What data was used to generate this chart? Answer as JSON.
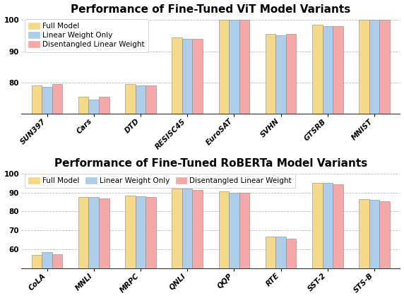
{
  "vit_title": "Performance of Fine-Tuned ViT Model Variants",
  "roberta_title": "Performance of Fine-Tuned RoBERTa Model Variants",
  "vit_categories": [
    "SUN397",
    "Cars",
    "DTD",
    "RESISC45",
    "EuroSAT",
    "SVHN",
    "GTSRB",
    "MNIST"
  ],
  "roberta_categories": [
    "CoLA",
    "MNLI",
    "MRPC",
    "QNLI",
    "QQP",
    "RTE",
    "SST-2",
    "STS-B"
  ],
  "legend_labels": [
    "Full Model",
    "Linear Weight Only",
    "Disentangled Linear Weight"
  ],
  "bar_colors": [
    "#F5D98B",
    "#AECDE8",
    "#F5A8A8"
  ],
  "vit_data": {
    "Full Model": [
      79.0,
      75.5,
      79.5,
      94.5,
      100.0,
      95.5,
      98.5,
      100.0
    ],
    "Linear Weight Only": [
      78.5,
      74.5,
      79.0,
      94.0,
      100.0,
      95.0,
      98.0,
      100.0
    ],
    "Disentangled Linear Weight": [
      79.5,
      75.5,
      79.0,
      94.0,
      100.0,
      95.5,
      98.0,
      100.0
    ]
  },
  "roberta_data": {
    "Full Model": [
      57.0,
      87.5,
      88.5,
      92.0,
      90.5,
      66.5,
      95.0,
      86.5
    ],
    "Linear Weight Only": [
      58.5,
      87.5,
      88.0,
      92.0,
      90.0,
      66.5,
      95.0,
      86.0
    ],
    "Disentangled Linear Weight": [
      57.5,
      87.0,
      87.5,
      91.5,
      90.0,
      65.5,
      94.5,
      85.5
    ]
  },
  "vit_ylim": [
    70,
    101.5
  ],
  "vit_yticks": [
    80,
    90,
    100
  ],
  "roberta_ylim": [
    50,
    102
  ],
  "roberta_yticks": [
    60,
    70,
    80,
    90,
    100
  ],
  "title_fontsize": 11,
  "tick_fontsize": 7.5,
  "legend_fontsize": 7.5,
  "bar_width": 0.22,
  "background_color": "#ffffff",
  "grid_color": "#bbbbbb",
  "edge_color": "#888888"
}
